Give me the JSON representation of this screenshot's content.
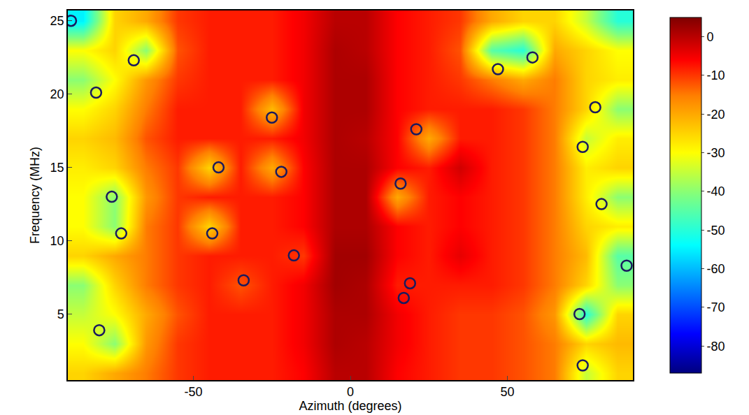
{
  "chart_data": {
    "type": "heatmap",
    "xlabel": "Azimuth (degrees)",
    "ylabel": "Frequency (MHz)",
    "xlim": [
      -90,
      90
    ],
    "xticks": [
      -50,
      0,
      50
    ],
    "ylim": [
      0.5,
      25.7
    ],
    "yticks": [
      5,
      10,
      15,
      20,
      25
    ],
    "x": [
      -85,
      -75,
      -65,
      -55,
      -45,
      -35,
      -25,
      -15,
      -5,
      5,
      15,
      25,
      35,
      45,
      55,
      65,
      75,
      85
    ],
    "y": [
      1,
      3,
      5,
      7,
      9,
      11,
      13,
      15,
      17,
      19,
      21,
      23,
      25
    ],
    "z": [
      [
        -25,
        -20,
        -15,
        -10,
        -8,
        -8,
        -8,
        -6,
        0,
        0,
        -6,
        -8,
        -10,
        -10,
        -12,
        -15,
        -35,
        -25
      ],
      [
        -30,
        -40,
        -18,
        -10,
        -8,
        -8,
        -8,
        -5,
        1,
        0,
        -5,
        -8,
        -10,
        -10,
        -12,
        -15,
        -25,
        -22
      ],
      [
        -35,
        -30,
        -20,
        -12,
        -8,
        -8,
        -8,
        -5,
        1,
        1,
        -5,
        -8,
        -10,
        -10,
        -12,
        -18,
        -50,
        -25
      ],
      [
        -40,
        -25,
        -15,
        -10,
        -8,
        -12,
        -8,
        -5,
        2,
        1,
        -8,
        -8,
        -8,
        -8,
        -10,
        -15,
        -25,
        -40
      ],
      [
        -25,
        -20,
        -15,
        -10,
        -8,
        -8,
        -8,
        -10,
        2,
        2,
        -6,
        -8,
        -4,
        -8,
        -10,
        -15,
        -22,
        -45
      ],
      [
        -30,
        -40,
        -15,
        -10,
        -25,
        -8,
        -8,
        -6,
        1,
        1,
        -6,
        -8,
        -6,
        -8,
        -10,
        -15,
        -25,
        -28
      ],
      [
        -30,
        -40,
        -18,
        -10,
        -8,
        -8,
        -8,
        -6,
        1,
        1,
        -20,
        -8,
        -6,
        -8,
        -10,
        -15,
        -28,
        -40
      ],
      [
        -28,
        -25,
        -15,
        -10,
        -25,
        -8,
        -20,
        -6,
        1,
        1,
        -6,
        -8,
        -2,
        -8,
        -10,
        -15,
        -28,
        -25
      ],
      [
        -25,
        -22,
        -12,
        -8,
        -8,
        -8,
        -8,
        -5,
        1,
        0,
        -6,
        -20,
        -8,
        -8,
        -10,
        -15,
        -35,
        -28
      ],
      [
        -30,
        -25,
        -15,
        -8,
        -8,
        -8,
        -22,
        -5,
        1,
        1,
        -6,
        -8,
        -8,
        -8,
        -10,
        -15,
        -25,
        -40
      ],
      [
        -40,
        -30,
        -18,
        -10,
        -8,
        -8,
        -8,
        -5,
        1,
        1,
        -6,
        -8,
        -10,
        -15,
        -20,
        -15,
        -25,
        -28
      ],
      [
        -30,
        -25,
        -40,
        -12,
        -8,
        -8,
        -8,
        -5,
        1,
        0,
        -6,
        -8,
        -12,
        -45,
        -50,
        -20,
        -25,
        -30
      ],
      [
        -55,
        -25,
        -20,
        -10,
        -8,
        -8,
        -8,
        -5,
        0,
        0,
        -6,
        -8,
        -10,
        -20,
        -25,
        -25,
        -35,
        -50
      ]
    ],
    "zlim": [
      -87,
      5
    ],
    "zticks": [
      0,
      -10,
      -20,
      -30,
      -40,
      -50,
      -60,
      -70,
      -80
    ],
    "circles": {
      "marker": "circle-open",
      "color": "#1a1a5e",
      "x": [
        -89,
        -69,
        -81,
        -25,
        21,
        78,
        -42,
        -22,
        16,
        74,
        -76,
        80,
        -73,
        -44,
        -18,
        -34,
        19,
        17,
        88,
        -80,
        73,
        74,
        47,
        58
      ],
      "y": [
        25,
        22.3,
        20.1,
        18.4,
        17.6,
        19.1,
        15,
        14.7,
        13.9,
        16.4,
        13,
        12.5,
        10.5,
        10.5,
        9,
        7.3,
        7.1,
        6.1,
        8.3,
        3.9,
        5,
        1.5,
        21.7,
        22.5
      ]
    }
  }
}
